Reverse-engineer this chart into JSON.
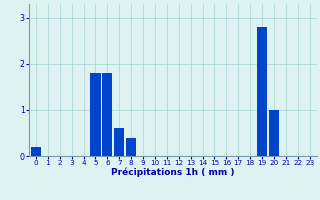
{
  "hours": [
    0,
    1,
    2,
    3,
    4,
    5,
    6,
    7,
    8,
    9,
    10,
    11,
    12,
    13,
    14,
    15,
    16,
    17,
    18,
    19,
    20,
    21,
    22,
    23
  ],
  "values": [
    0.2,
    0,
    0,
    0,
    0,
    1.8,
    1.8,
    0.6,
    0.4,
    0,
    0,
    0,
    0,
    0,
    0,
    0,
    0,
    0,
    0,
    2.8,
    1.0,
    0,
    0,
    0
  ],
  "bar_color": "#0044cc",
  "background_color": "#dff2f2",
  "grid_color": "#b0d8d8",
  "axis_color": "#0000aa",
  "xlabel": "Précipitations 1h ( mm )",
  "xlabel_fontsize": 6.5,
  "tick_fontsize": 5.2,
  "ylim": [
    0,
    3.3
  ],
  "yticks": [
    0,
    1,
    2,
    3
  ],
  "bar_width": 0.85
}
